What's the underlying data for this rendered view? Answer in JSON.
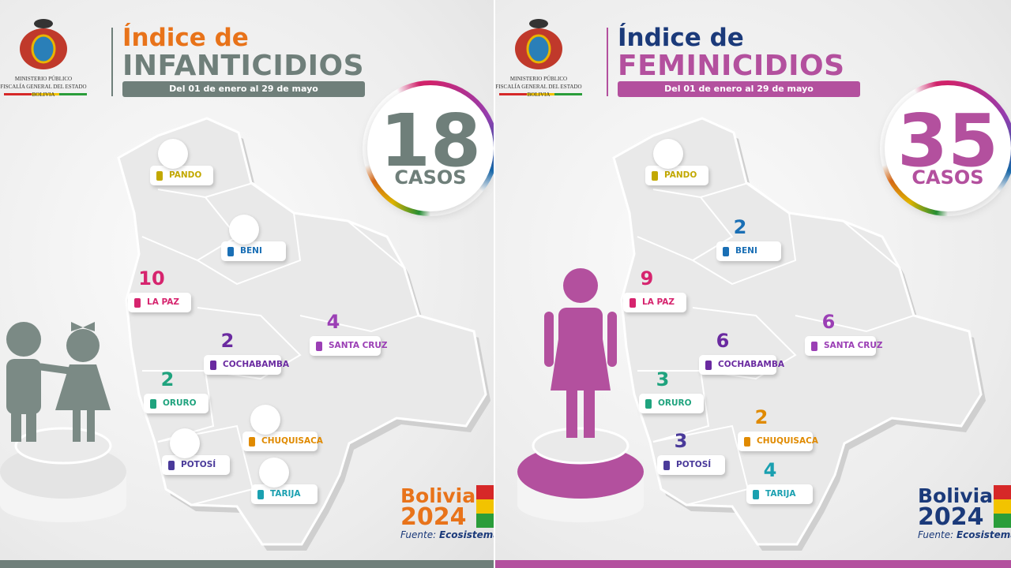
{
  "panels": [
    {
      "org": [
        "MINISTERIO PÚBLICO",
        "FISCALÍA GENERAL DEL ESTADO",
        "BOLIVIA"
      ],
      "title_line1": "Índice de",
      "title_line2": "INFANTICIDIOS",
      "period": "Del 01 de enero al 29 de mayo",
      "total": 18,
      "total_unit": "CASOS",
      "departments": [
        {
          "name": "PANDO"
        },
        {
          "name": "BENI"
        },
        {
          "name": "LA PAZ",
          "count": 10
        },
        {
          "name": "SANTA CRUZ",
          "count": 4
        },
        {
          "name": "COCHABAMBA",
          "count": 2
        },
        {
          "name": "ORURO",
          "count": 2
        },
        {
          "name": "POTOSÍ"
        },
        {
          "name": "CHUQUISACA"
        },
        {
          "name": "TARIJA"
        }
      ],
      "brand_name": "Bolivia",
      "brand_year": "2024",
      "source_label": "Fuente:",
      "source": "Ecosistema"
    },
    {
      "org": [
        "MINISTERIO PÚBLICO",
        "FISCALÍA GENERAL DEL ESTADO",
        "BOLIVIA"
      ],
      "title_line1": "Índice de",
      "title_line2": "FEMINICIDIOS",
      "period": "Del 01 de enero al 29 de mayo",
      "total": 35,
      "total_unit": "CASOS",
      "departments": [
        {
          "name": "PANDO"
        },
        {
          "name": "BENI",
          "count": 2
        },
        {
          "name": "LA PAZ",
          "count": 9
        },
        {
          "name": "SANTA CRUZ",
          "count": 6
        },
        {
          "name": "COCHABAMBA",
          "count": 6
        },
        {
          "name": "ORURO",
          "count": 3
        },
        {
          "name": "POTOSÍ",
          "count": 3
        },
        {
          "name": "CHUQUISACA",
          "count": 2
        },
        {
          "name": "TARIJA",
          "count": 4
        }
      ],
      "brand_name": "Bolivia",
      "brand_year": "2024",
      "source_label": "Fuente:",
      "source": "Ecosistema"
    }
  ]
}
